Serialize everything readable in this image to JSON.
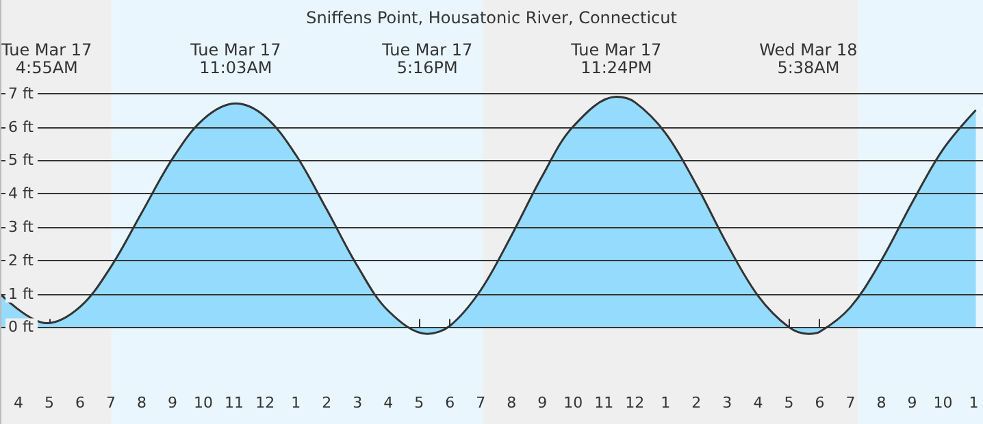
{
  "chart_data": {
    "type": "area",
    "title": "Sniffens Point, Housatonic River, Connecticut",
    "x": [
      "--03-17T03:24",
      "--03-17T04:55",
      "--03-17T06:00",
      "--03-17T07:00",
      "--03-17T08:00",
      "--03-17T09:00",
      "--03-17T10:00",
      "--03-17T11:03",
      "--03-17T12:00",
      "--03-17T13:00",
      "--03-17T14:00",
      "--03-17T15:00",
      "--03-17T16:00",
      "--03-17T17:16",
      "--03-17T18:00",
      "--03-17T19:00",
      "--03-17T20:00",
      "--03-17T21:00",
      "--03-17T22:00",
      "--03-17T23:24",
      "--03-18T00:00",
      "--03-18T01:00",
      "--03-18T02:00",
      "--03-18T03:00",
      "--03-18T04:00",
      "--03-18T05:00",
      "--03-18T05:38",
      "--03-18T06:00",
      "--03-18T07:00",
      "--03-18T08:00",
      "--03-18T09:00",
      "--03-18T10:00",
      "--03-18T11:04"
    ],
    "series": [
      {
        "color": "#94dbfd",
        "values": [
          1.0,
          0.12,
          0.61,
          1.81,
          3.43,
          5.05,
          6.23,
          6.7,
          6.31,
          5.16,
          3.53,
          1.83,
          0.49,
          -0.2,
          0.04,
          1.11,
          2.75,
          4.53,
          6.01,
          6.9,
          6.74,
          5.81,
          4.26,
          2.48,
          0.94,
          0.0,
          -0.2,
          -0.14,
          0.6,
          2.0,
          3.73,
          5.32,
          6.5
        ]
      }
    ],
    "xlim": [
      "--03-17T03:24",
      "--03-18T11:18"
    ],
    "ylim": [
      -2.9,
      9.8
    ],
    "xticks": [
      {
        "value": "--03-17T04:00",
        "label": "4"
      },
      {
        "value": "--03-17T05:00",
        "label": "5"
      },
      {
        "value": "--03-17T06:00",
        "label": "6"
      },
      {
        "value": "--03-17T07:00",
        "label": "7"
      },
      {
        "value": "--03-17T08:00",
        "label": "8"
      },
      {
        "value": "--03-17T09:00",
        "label": "9"
      },
      {
        "value": "--03-17T10:00",
        "label": "10"
      },
      {
        "value": "--03-17T11:00",
        "label": "11"
      },
      {
        "value": "--03-17T12:00",
        "label": "12"
      },
      {
        "value": "--03-17T13:00",
        "label": "1"
      },
      {
        "value": "--03-17T14:00",
        "label": "2"
      },
      {
        "value": "--03-17T15:00",
        "label": "3"
      },
      {
        "value": "--03-17T16:00",
        "label": "4"
      },
      {
        "value": "--03-17T17:00",
        "label": "5"
      },
      {
        "value": "--03-17T18:00",
        "label": "6"
      },
      {
        "value": "--03-17T19:00",
        "label": "7"
      },
      {
        "value": "--03-17T20:00",
        "label": "8"
      },
      {
        "value": "--03-17T21:00",
        "label": "9"
      },
      {
        "value": "--03-17T22:00",
        "label": "10"
      },
      {
        "value": "--03-17T23:00",
        "label": "11"
      },
      {
        "value": "--03-18T00:00",
        "label": "12"
      },
      {
        "value": "--03-18T01:00",
        "label": "1"
      },
      {
        "value": "--03-18T02:00",
        "label": "2"
      },
      {
        "value": "--03-18T03:00",
        "label": "3"
      },
      {
        "value": "--03-18T04:00",
        "label": "4"
      },
      {
        "value": "--03-18T05:00",
        "label": "5"
      },
      {
        "value": "--03-18T06:00",
        "label": "6"
      },
      {
        "value": "--03-18T07:00",
        "label": "7"
      },
      {
        "value": "--03-18T08:00",
        "label": "8"
      },
      {
        "value": "--03-18T09:00",
        "label": "9"
      },
      {
        "value": "--03-18T10:00",
        "label": "10"
      },
      {
        "value": "--03-18T11:00",
        "label": "1"
      }
    ],
    "yticks": [
      {
        "value": 0,
        "label": "0 ft"
      },
      {
        "value": 1,
        "label": "1 ft"
      },
      {
        "value": 2,
        "label": "2 ft"
      },
      {
        "value": 3,
        "label": "3 ft"
      },
      {
        "value": 4,
        "label": "4 ft"
      },
      {
        "value": 5,
        "label": "5 ft"
      },
      {
        "value": 6,
        "label": "6 ft"
      },
      {
        "value": 7,
        "label": "7 ft"
      }
    ],
    "grid": "y",
    "marker": "none",
    "line_style": "solid",
    "bands": [
      {
        "axis": "x",
        "from": "--03-17T03:24",
        "to": "--03-17T07:02",
        "color": "#efefef"
      },
      {
        "axis": "x",
        "from": "--03-17T07:02",
        "to": "--03-17T19:05",
        "color": "#eaf6fe"
      },
      {
        "axis": "x",
        "from": "--03-17T19:05",
        "to": "--03-18T07:16",
        "color": "#efefef"
      },
      {
        "axis": "x",
        "from": "--03-18T07:16",
        "to": "--03-18T11:18",
        "color": "#eaf6fe"
      }
    ],
    "annotations": [
      "Tue Mar 17\n4:55AM",
      "Tue Mar 17\n11:03AM",
      "Tue Mar 17\n5:16PM",
      "Tue Mar 17\n11:24PM",
      "Wed Mar 18\n5:38AM"
    ]
  }
}
